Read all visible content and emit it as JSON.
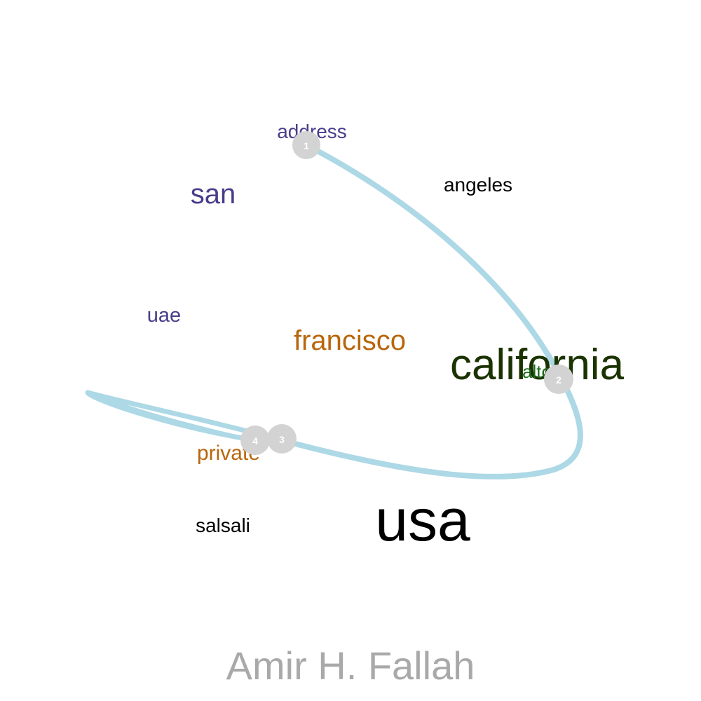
{
  "words": [
    {
      "text": "address",
      "color": "#483d8b"
    },
    {
      "text": "angeles",
      "color": "#000000"
    },
    {
      "text": "san",
      "color": "#483d8b"
    },
    {
      "text": "uae",
      "color": "#483d8b"
    },
    {
      "text": "francisco",
      "color": "#b8660b"
    },
    {
      "text": "california",
      "color": "#1a3300"
    },
    {
      "text": "alto",
      "color": "#1a6b1a"
    },
    {
      "text": "private",
      "color": "#b8660b"
    },
    {
      "text": "salsali",
      "color": "#000000"
    },
    {
      "text": "usa",
      "color": "#000000"
    }
  ],
  "path": {
    "color": "#add8e6",
    "nodes": [
      {
        "label": "1",
        "word": "address"
      },
      {
        "label": "2",
        "word": "california"
      },
      {
        "label": "3",
        "word": "private"
      },
      {
        "label": "4",
        "word": "private"
      }
    ],
    "node_color": "#d3d3d3"
  },
  "credit": "Amir H. Fallah"
}
